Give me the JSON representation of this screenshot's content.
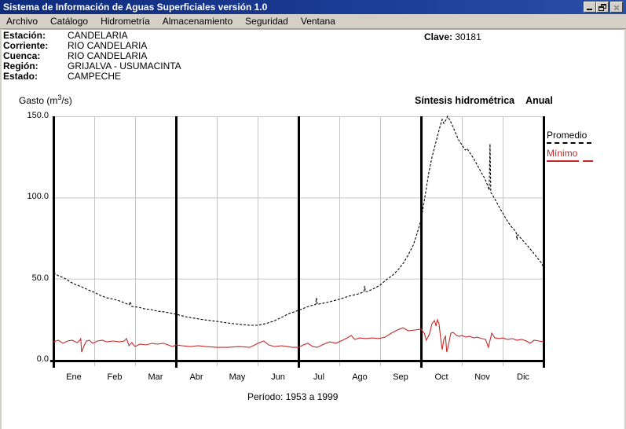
{
  "window": {
    "title": "Sistema de Información de Aguas Superficiales  versión 1.0"
  },
  "menu": {
    "items": [
      "Archivo",
      "Catálogo",
      "Hidrometría",
      "Almacenamiento",
      "Seguridad",
      "Ventana"
    ]
  },
  "station": {
    "fields": [
      {
        "label": "Estación:",
        "value": "CANDELARIA"
      },
      {
        "label": "Corriente:",
        "value": "RIO CANDELARIA"
      },
      {
        "label": "Cuenca:",
        "value": "RIO CANDELARIA"
      },
      {
        "label": "Región:",
        "value": "GRIJALVA - USUMACINTA"
      },
      {
        "label": "Estado:",
        "value": "CAMPECHE"
      }
    ],
    "clave": {
      "label": "Clave:",
      "value": "30181"
    }
  },
  "chart_data": {
    "type": "line",
    "title": "Síntesis hidrométrica",
    "mode": "Anual",
    "ylabel": "Gasto (m3/s)",
    "ylabel_parts": {
      "prefix": "Gasto (m",
      "sup": "3",
      "suffix": "/s)"
    },
    "ylim": [
      0,
      150
    ],
    "yticks": [
      {
        "value": 0,
        "label": "0.0"
      },
      {
        "value": 50,
        "label": "50.0"
      },
      {
        "value": 100,
        "label": "100.0"
      },
      {
        "value": 150,
        "label": "150.0"
      }
    ],
    "categories": [
      "Ene",
      "Feb",
      "Mar",
      "Abr",
      "May",
      "Jun",
      "Jul",
      "Ago",
      "Sep",
      "Oct",
      "Nov",
      "Dic"
    ],
    "grid": {
      "minor_month_lines": [
        1,
        2,
        4,
        5,
        7,
        8,
        10,
        11
      ],
      "quarter_lines": [
        0,
        3,
        6,
        9,
        12
      ],
      "h_gridlines": [
        50,
        100,
        150
      ]
    },
    "legend": {
      "position": "right",
      "entries": [
        {
          "name": "Promedio",
          "color": "#000000",
          "style": "dashed"
        },
        {
          "name": "Mínimo",
          "color": "#c62828",
          "style": "solid"
        }
      ]
    },
    "footer": "Período:  1953 a 1999",
    "series": [
      {
        "name": "Promedio",
        "color": "#000000",
        "dash": true,
        "points": [
          [
            0,
            53.7
          ],
          [
            0.12,
            51.8
          ],
          [
            0.23,
            50.8
          ],
          [
            0.31,
            49.8
          ],
          [
            0.42,
            47.9
          ],
          [
            0.54,
            46.4
          ],
          [
            0.69,
            45
          ],
          [
            0.85,
            43.1
          ],
          [
            1,
            41.6
          ],
          [
            1.15,
            39.7
          ],
          [
            1.31,
            38.2
          ],
          [
            1.48,
            37.3
          ],
          [
            1.62,
            36.3
          ],
          [
            1.77,
            34.8
          ],
          [
            1.85,
            33.9
          ],
          [
            1.88,
            35.8
          ],
          [
            1.92,
            32.9
          ],
          [
            2.08,
            32.4
          ],
          [
            2.23,
            31.4
          ],
          [
            2.38,
            31
          ],
          [
            2.54,
            30
          ],
          [
            2.73,
            29.5
          ],
          [
            3,
            28.1
          ],
          [
            3.23,
            26.6
          ],
          [
            3.46,
            25.6
          ],
          [
            3.69,
            24.7
          ],
          [
            4,
            23.7
          ],
          [
            4.27,
            22.7
          ],
          [
            4.58,
            21.8
          ],
          [
            4.81,
            21.3
          ],
          [
            5,
            21.3
          ],
          [
            5.19,
            22.3
          ],
          [
            5.38,
            23.7
          ],
          [
            5.58,
            26.1
          ],
          [
            5.77,
            28.5
          ],
          [
            6,
            30.5
          ],
          [
            6.19,
            32.4
          ],
          [
            6.38,
            33.9
          ],
          [
            6.42,
            34.1
          ],
          [
            6.44,
            38.2
          ],
          [
            6.46,
            34.2
          ],
          [
            6.5,
            34.4
          ],
          [
            6.69,
            35.3
          ],
          [
            7,
            37.3
          ],
          [
            7.23,
            39.2
          ],
          [
            7.46,
            40.6
          ],
          [
            7.58,
            41.6
          ],
          [
            7.6,
            41.8
          ],
          [
            7.62,
            45.5
          ],
          [
            7.64,
            42
          ],
          [
            7.69,
            42.1
          ],
          [
            7.85,
            44
          ],
          [
            8,
            46
          ],
          [
            8.15,
            49.3
          ],
          [
            8.31,
            52.2
          ],
          [
            8.46,
            56.1
          ],
          [
            8.58,
            60
          ],
          [
            8.69,
            64.8
          ],
          [
            8.81,
            70.6
          ],
          [
            8.9,
            77.4
          ],
          [
            9,
            86.1
          ],
          [
            9.06,
            94.8
          ],
          [
            9.12,
            104
          ],
          [
            9.19,
            115.1
          ],
          [
            9.27,
            124.8
          ],
          [
            9.35,
            132.6
          ],
          [
            9.42,
            139.3
          ],
          [
            9.48,
            145.1
          ],
          [
            9.52,
            148
          ],
          [
            9.56,
            145.6
          ],
          [
            9.62,
            148
          ],
          [
            9.65,
            150
          ],
          [
            9.71,
            147.5
          ],
          [
            9.79,
            143.2
          ],
          [
            9.87,
            138.3
          ],
          [
            9.94,
            134.5
          ],
          [
            10,
            132.6
          ],
          [
            10.08,
            129.2
          ],
          [
            10.13,
            130.1
          ],
          [
            10.19,
            127.7
          ],
          [
            10.27,
            124.8
          ],
          [
            10.37,
            120.4
          ],
          [
            10.46,
            116.1
          ],
          [
            10.56,
            111.8
          ],
          [
            10.63,
            107.4
          ],
          [
            10.67,
            104.5
          ],
          [
            10.69,
            133
          ],
          [
            10.71,
            103
          ],
          [
            10.75,
            101.6
          ],
          [
            10.85,
            97.2
          ],
          [
            10.94,
            92.9
          ],
          [
            11,
            90.5
          ],
          [
            11.1,
            86.1
          ],
          [
            11.19,
            82.7
          ],
          [
            11.29,
            79.8
          ],
          [
            11.33,
            78.4
          ],
          [
            11.35,
            74
          ],
          [
            11.37,
            77
          ],
          [
            11.44,
            75
          ],
          [
            11.58,
            71.1
          ],
          [
            11.71,
            67.2
          ],
          [
            11.83,
            63.4
          ],
          [
            11.94,
            60
          ],
          [
            12,
            57.1
          ]
        ]
      },
      {
        "name": "Mínimo",
        "color": "#c62828",
        "dash": false,
        "points": [
          [
            0,
            11.1
          ],
          [
            0.12,
            12.1
          ],
          [
            0.23,
            10.2
          ],
          [
            0.35,
            11.6
          ],
          [
            0.46,
            12.1
          ],
          [
            0.58,
            10.6
          ],
          [
            0.65,
            12.1
          ],
          [
            0.67,
            13
          ],
          [
            0.69,
            4.8
          ],
          [
            0.75,
            8.7
          ],
          [
            0.81,
            11.6
          ],
          [
            0.88,
            12.1
          ],
          [
            0.96,
            10.2
          ],
          [
            1.08,
            11.6
          ],
          [
            1.19,
            12.1
          ],
          [
            1.31,
            11.1
          ],
          [
            1.46,
            11.6
          ],
          [
            1.62,
            11.1
          ],
          [
            1.73,
            11.6
          ],
          [
            1.79,
            13.1
          ],
          [
            1.85,
            8.7
          ],
          [
            1.92,
            10.6
          ],
          [
            2,
            8.2
          ],
          [
            2.12,
            9.7
          ],
          [
            2.27,
            9.2
          ],
          [
            2.42,
            10.2
          ],
          [
            2.54,
            9.7
          ],
          [
            2.69,
            10.2
          ],
          [
            2.81,
            9.2
          ],
          [
            2.92,
            8.2
          ],
          [
            3,
            9.2
          ],
          [
            3.15,
            8.7
          ],
          [
            3.35,
            8.2
          ],
          [
            3.54,
            8.7
          ],
          [
            3.73,
            8.2
          ],
          [
            4,
            7.7
          ],
          [
            4.27,
            7.7
          ],
          [
            4.54,
            8.2
          ],
          [
            4.81,
            7.7
          ],
          [
            5.04,
            10.6
          ],
          [
            5.15,
            11.6
          ],
          [
            5.27,
            9.2
          ],
          [
            5.42,
            8.2
          ],
          [
            5.58,
            8.7
          ],
          [
            5.73,
            8.2
          ],
          [
            5.85,
            7.7
          ],
          [
            6,
            7.7
          ],
          [
            6.12,
            9.2
          ],
          [
            6.23,
            10.2
          ],
          [
            6.35,
            8.2
          ],
          [
            6.46,
            7.7
          ],
          [
            6.62,
            9.7
          ],
          [
            6.77,
            11.1
          ],
          [
            6.92,
            10.2
          ],
          [
            7.08,
            12.1
          ],
          [
            7.19,
            13.5
          ],
          [
            7.29,
            15
          ],
          [
            7.38,
            12.6
          ],
          [
            7.5,
            13.5
          ],
          [
            7.65,
            13.1
          ],
          [
            7.81,
            13.5
          ],
          [
            7.96,
            13.1
          ],
          [
            8.12,
            14
          ],
          [
            8.27,
            16.4
          ],
          [
            8.42,
            18.4
          ],
          [
            8.56,
            19.8
          ],
          [
            8.69,
            17.9
          ],
          [
            8.85,
            18.4
          ],
          [
            9,
            18.9
          ],
          [
            9.08,
            16.4
          ],
          [
            9.13,
            12.1
          ],
          [
            9.21,
            16
          ],
          [
            9.27,
            22.3
          ],
          [
            9.33,
            24.2
          ],
          [
            9.37,
            20.8
          ],
          [
            9.4,
            24.7
          ],
          [
            9.44,
            22.3
          ],
          [
            9.48,
            13.5
          ],
          [
            9.52,
            6.3
          ],
          [
            9.56,
            12.6
          ],
          [
            9.6,
            14.5
          ],
          [
            9.63,
            4.8
          ],
          [
            9.67,
            8.7
          ],
          [
            9.73,
            16.4
          ],
          [
            9.79,
            16.9
          ],
          [
            9.87,
            15
          ],
          [
            9.94,
            14.5
          ],
          [
            10,
            15
          ],
          [
            10.1,
            14
          ],
          [
            10.19,
            14.5
          ],
          [
            10.29,
            13.5
          ],
          [
            10.38,
            14
          ],
          [
            10.48,
            13.1
          ],
          [
            10.58,
            12.6
          ],
          [
            10.65,
            7.7
          ],
          [
            10.73,
            16.4
          ],
          [
            10.81,
            13.5
          ],
          [
            10.92,
            13.1
          ],
          [
            11,
            13.5
          ],
          [
            11.12,
            12.6
          ],
          [
            11.23,
            13.1
          ],
          [
            11.35,
            12.1
          ],
          [
            11.46,
            12.6
          ],
          [
            11.58,
            11.6
          ],
          [
            11.67,
            10.2
          ],
          [
            11.77,
            12.1
          ],
          [
            11.88,
            11.6
          ],
          [
            12,
            11.1
          ]
        ]
      }
    ]
  }
}
